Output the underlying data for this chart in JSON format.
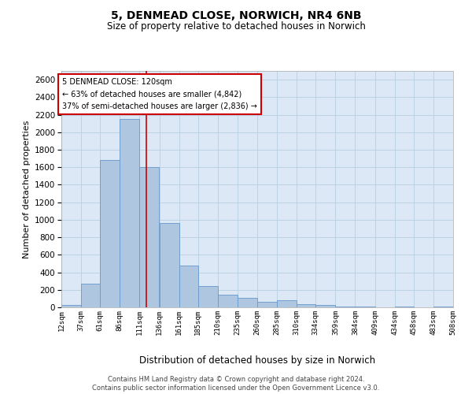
{
  "title_line1": "5, DENMEAD CLOSE, NORWICH, NR4 6NB",
  "title_line2": "Size of property relative to detached houses in Norwich",
  "xlabel": "Distribution of detached houses by size in Norwich",
  "ylabel": "Number of detached properties",
  "annotation_line1": "5 DENMEAD CLOSE: 120sqm",
  "annotation_line2": "← 63% of detached houses are smaller (4,842)",
  "annotation_line3": "37% of semi-detached houses are larger (2,836) →",
  "footer_line1": "Contains HM Land Registry data © Crown copyright and database right 2024.",
  "footer_line2": "Contains public sector information licensed under the Open Government Licence v3.0.",
  "bar_color": "#aec6e0",
  "bar_edge_color": "#6699cc",
  "background_color": "#dce8f5",
  "vline_color": "#cc0000",
  "vline_x": 120,
  "bins": [
    12,
    37,
    61,
    86,
    111,
    136,
    161,
    185,
    210,
    235,
    260,
    285,
    310,
    334,
    359,
    384,
    409,
    434,
    458,
    483,
    508
  ],
  "values": [
    25,
    270,
    1680,
    2150,
    1600,
    960,
    480,
    240,
    140,
    110,
    60,
    80,
    40,
    30,
    10,
    10,
    0,
    10,
    0,
    10
  ],
  "ylim": [
    0,
    2700
  ],
  "yticks": [
    0,
    200,
    400,
    600,
    800,
    1000,
    1200,
    1400,
    1600,
    1800,
    2000,
    2200,
    2400,
    2600
  ],
  "grid_color": "#b8cfe0"
}
